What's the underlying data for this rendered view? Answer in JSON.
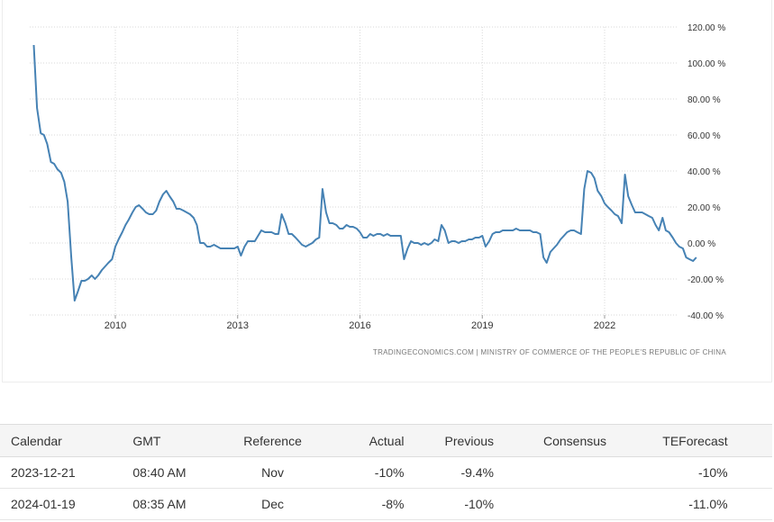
{
  "chart_data": {
    "type": "line",
    "title": "",
    "xlabel": "",
    "ylabel": "",
    "y_ticks": [
      "120.00 %",
      "100.00 %",
      "80.00 %",
      "60.00 %",
      "40.00 %",
      "20.00 %",
      "0.00 %",
      "-20.00 %",
      "-40.00 %"
    ],
    "ylim": [
      -40,
      120
    ],
    "x_ticks": [
      "2010",
      "2013",
      "2016",
      "2019",
      "2022"
    ],
    "grid": "dotted",
    "line_color": "#4682b4",
    "source": "TRADINGECONOMICS.COM  |  MINISTRY OF COMMERCE OF THE PEOPLE'S REPUBLIC OF CHINA",
    "series": [
      {
        "values": [
          [
            2008.0,
            110
          ],
          [
            2008.08,
            75
          ],
          [
            2008.17,
            61
          ],
          [
            2008.25,
            60
          ],
          [
            2008.33,
            55
          ],
          [
            2008.42,
            45
          ],
          [
            2008.5,
            44
          ],
          [
            2008.58,
            41
          ],
          [
            2008.67,
            39
          ],
          [
            2008.75,
            34
          ],
          [
            2008.83,
            23
          ],
          [
            2008.92,
            -8
          ],
          [
            2009.0,
            -32
          ],
          [
            2009.08,
            -27
          ],
          [
            2009.17,
            -21
          ],
          [
            2009.25,
            -21
          ],
          [
            2009.33,
            -20
          ],
          [
            2009.42,
            -18
          ],
          [
            2009.5,
            -20
          ],
          [
            2009.58,
            -18
          ],
          [
            2009.67,
            -15
          ],
          [
            2009.75,
            -13
          ],
          [
            2009.83,
            -11
          ],
          [
            2009.92,
            -9
          ],
          [
            2010.0,
            -2
          ],
          [
            2010.08,
            2
          ],
          [
            2010.17,
            6
          ],
          [
            2010.25,
            10
          ],
          [
            2010.33,
            13
          ],
          [
            2010.42,
            17
          ],
          [
            2010.5,
            20
          ],
          [
            2010.58,
            21
          ],
          [
            2010.67,
            19
          ],
          [
            2010.75,
            17
          ],
          [
            2010.83,
            16
          ],
          [
            2010.92,
            16
          ],
          [
            2011.0,
            18
          ],
          [
            2011.08,
            23
          ],
          [
            2011.17,
            27
          ],
          [
            2011.25,
            29
          ],
          [
            2011.33,
            26
          ],
          [
            2011.42,
            23
          ],
          [
            2011.5,
            19
          ],
          [
            2011.58,
            19
          ],
          [
            2011.67,
            18
          ],
          [
            2011.75,
            17
          ],
          [
            2011.83,
            16
          ],
          [
            2011.92,
            14
          ],
          [
            2012.0,
            10
          ],
          [
            2012.08,
            0
          ],
          [
            2012.17,
            0
          ],
          [
            2012.25,
            -2
          ],
          [
            2012.33,
            -2
          ],
          [
            2012.42,
            -1
          ],
          [
            2012.5,
            -2
          ],
          [
            2012.58,
            -3
          ],
          [
            2012.67,
            -3
          ],
          [
            2012.75,
            -3
          ],
          [
            2012.83,
            -3
          ],
          [
            2012.92,
            -3
          ],
          [
            2013.0,
            -2
          ],
          [
            2013.08,
            -7
          ],
          [
            2013.17,
            -2
          ],
          [
            2013.25,
            1
          ],
          [
            2013.33,
            1
          ],
          [
            2013.42,
            1
          ],
          [
            2013.5,
            4
          ],
          [
            2013.58,
            7
          ],
          [
            2013.67,
            6
          ],
          [
            2013.75,
            6
          ],
          [
            2013.83,
            6
          ],
          [
            2013.92,
            5
          ],
          [
            2014.0,
            5
          ],
          [
            2014.08,
            16
          ],
          [
            2014.17,
            11
          ],
          [
            2014.25,
            5
          ],
          [
            2014.33,
            5
          ],
          [
            2014.42,
            3
          ],
          [
            2014.5,
            1
          ],
          [
            2014.58,
            -1
          ],
          [
            2014.67,
            -2
          ],
          [
            2014.75,
            -1
          ],
          [
            2014.83,
            0
          ],
          [
            2014.92,
            2
          ],
          [
            2015.0,
            3
          ],
          [
            2015.08,
            30
          ],
          [
            2015.17,
            17
          ],
          [
            2015.25,
            11
          ],
          [
            2015.33,
            11
          ],
          [
            2015.42,
            10
          ],
          [
            2015.5,
            8
          ],
          [
            2015.58,
            8
          ],
          [
            2015.67,
            10
          ],
          [
            2015.75,
            9
          ],
          [
            2015.83,
            9
          ],
          [
            2015.92,
            8
          ],
          [
            2016.0,
            6
          ],
          [
            2016.08,
            3
          ],
          [
            2016.17,
            3
          ],
          [
            2016.25,
            5
          ],
          [
            2016.33,
            4
          ],
          [
            2016.42,
            5
          ],
          [
            2016.5,
            5
          ],
          [
            2016.58,
            4
          ],
          [
            2016.67,
            5
          ],
          [
            2016.75,
            4
          ],
          [
            2016.83,
            4
          ],
          [
            2016.92,
            4
          ],
          [
            2017.0,
            4
          ],
          [
            2017.08,
            -9
          ],
          [
            2017.17,
            -3
          ],
          [
            2017.25,
            1
          ],
          [
            2017.33,
            0
          ],
          [
            2017.42,
            0
          ],
          [
            2017.5,
            -1
          ],
          [
            2017.58,
            0
          ],
          [
            2017.67,
            -1
          ],
          [
            2017.75,
            0
          ],
          [
            2017.83,
            2
          ],
          [
            2017.92,
            1
          ],
          [
            2018.0,
            10
          ],
          [
            2018.08,
            7
          ],
          [
            2018.17,
            0
          ],
          [
            2018.25,
            1
          ],
          [
            2018.33,
            1
          ],
          [
            2018.42,
            0
          ],
          [
            2018.5,
            1
          ],
          [
            2018.58,
            1
          ],
          [
            2018.67,
            2
          ],
          [
            2018.75,
            2
          ],
          [
            2018.83,
            3
          ],
          [
            2018.92,
            3
          ],
          [
            2019.0,
            4
          ],
          [
            2019.08,
            -2
          ],
          [
            2019.17,
            1
          ],
          [
            2019.25,
            5
          ],
          [
            2019.33,
            6
          ],
          [
            2019.42,
            6
          ],
          [
            2019.5,
            7
          ],
          [
            2019.58,
            7
          ],
          [
            2019.67,
            7
          ],
          [
            2019.75,
            7
          ],
          [
            2019.83,
            8
          ],
          [
            2019.92,
            7
          ],
          [
            2020.0,
            7
          ],
          [
            2020.08,
            7
          ],
          [
            2020.17,
            7
          ],
          [
            2020.25,
            6
          ],
          [
            2020.33,
            6
          ],
          [
            2020.42,
            5
          ],
          [
            2020.5,
            -8
          ],
          [
            2020.58,
            -11
          ],
          [
            2020.67,
            -5
          ],
          [
            2020.75,
            -3
          ],
          [
            2020.83,
            -1
          ],
          [
            2020.92,
            2
          ],
          [
            2021.0,
            4
          ],
          [
            2021.08,
            6
          ],
          [
            2021.17,
            7
          ],
          [
            2021.25,
            7
          ],
          [
            2021.33,
            6
          ],
          [
            2021.42,
            5
          ],
          [
            2021.5,
            30
          ],
          [
            2021.58,
            40
          ],
          [
            2021.67,
            39
          ],
          [
            2021.75,
            36
          ],
          [
            2021.83,
            29
          ],
          [
            2021.92,
            26
          ],
          [
            2022.0,
            22
          ],
          [
            2022.08,
            20
          ],
          [
            2022.17,
            18
          ],
          [
            2022.25,
            16
          ],
          [
            2022.33,
            15
          ],
          [
            2022.42,
            11
          ],
          [
            2022.5,
            38
          ],
          [
            2022.58,
            26
          ],
          [
            2022.67,
            21
          ],
          [
            2022.75,
            17
          ],
          [
            2022.83,
            17
          ],
          [
            2022.92,
            17
          ],
          [
            2023.0,
            16
          ],
          [
            2023.08,
            15
          ],
          [
            2023.17,
            14
          ],
          [
            2023.25,
            10
          ],
          [
            2023.33,
            7
          ],
          [
            2023.42,
            14
          ],
          [
            2023.5,
            7
          ],
          [
            2023.58,
            6
          ],
          [
            2023.67,
            3
          ],
          [
            2023.75,
            0
          ],
          [
            2023.83,
            -2
          ],
          [
            2023.92,
            -3
          ],
          [
            2024.0,
            -8
          ],
          [
            2024.08,
            -9
          ],
          [
            2024.17,
            -10
          ],
          [
            2024.25,
            -8
          ]
        ]
      }
    ]
  },
  "calendar": {
    "headers": [
      "Calendar",
      "GMT",
      "Reference",
      "Actual",
      "Previous",
      "Consensus",
      "TEForecast"
    ],
    "rows": [
      [
        "2023-12-21",
        "08:40 AM",
        "Nov",
        "-10%",
        "-9.4%",
        "",
        "-10%"
      ],
      [
        "2024-01-19",
        "08:35 AM",
        "Dec",
        "-8%",
        "-10%",
        "",
        "-11.0%"
      ]
    ]
  }
}
